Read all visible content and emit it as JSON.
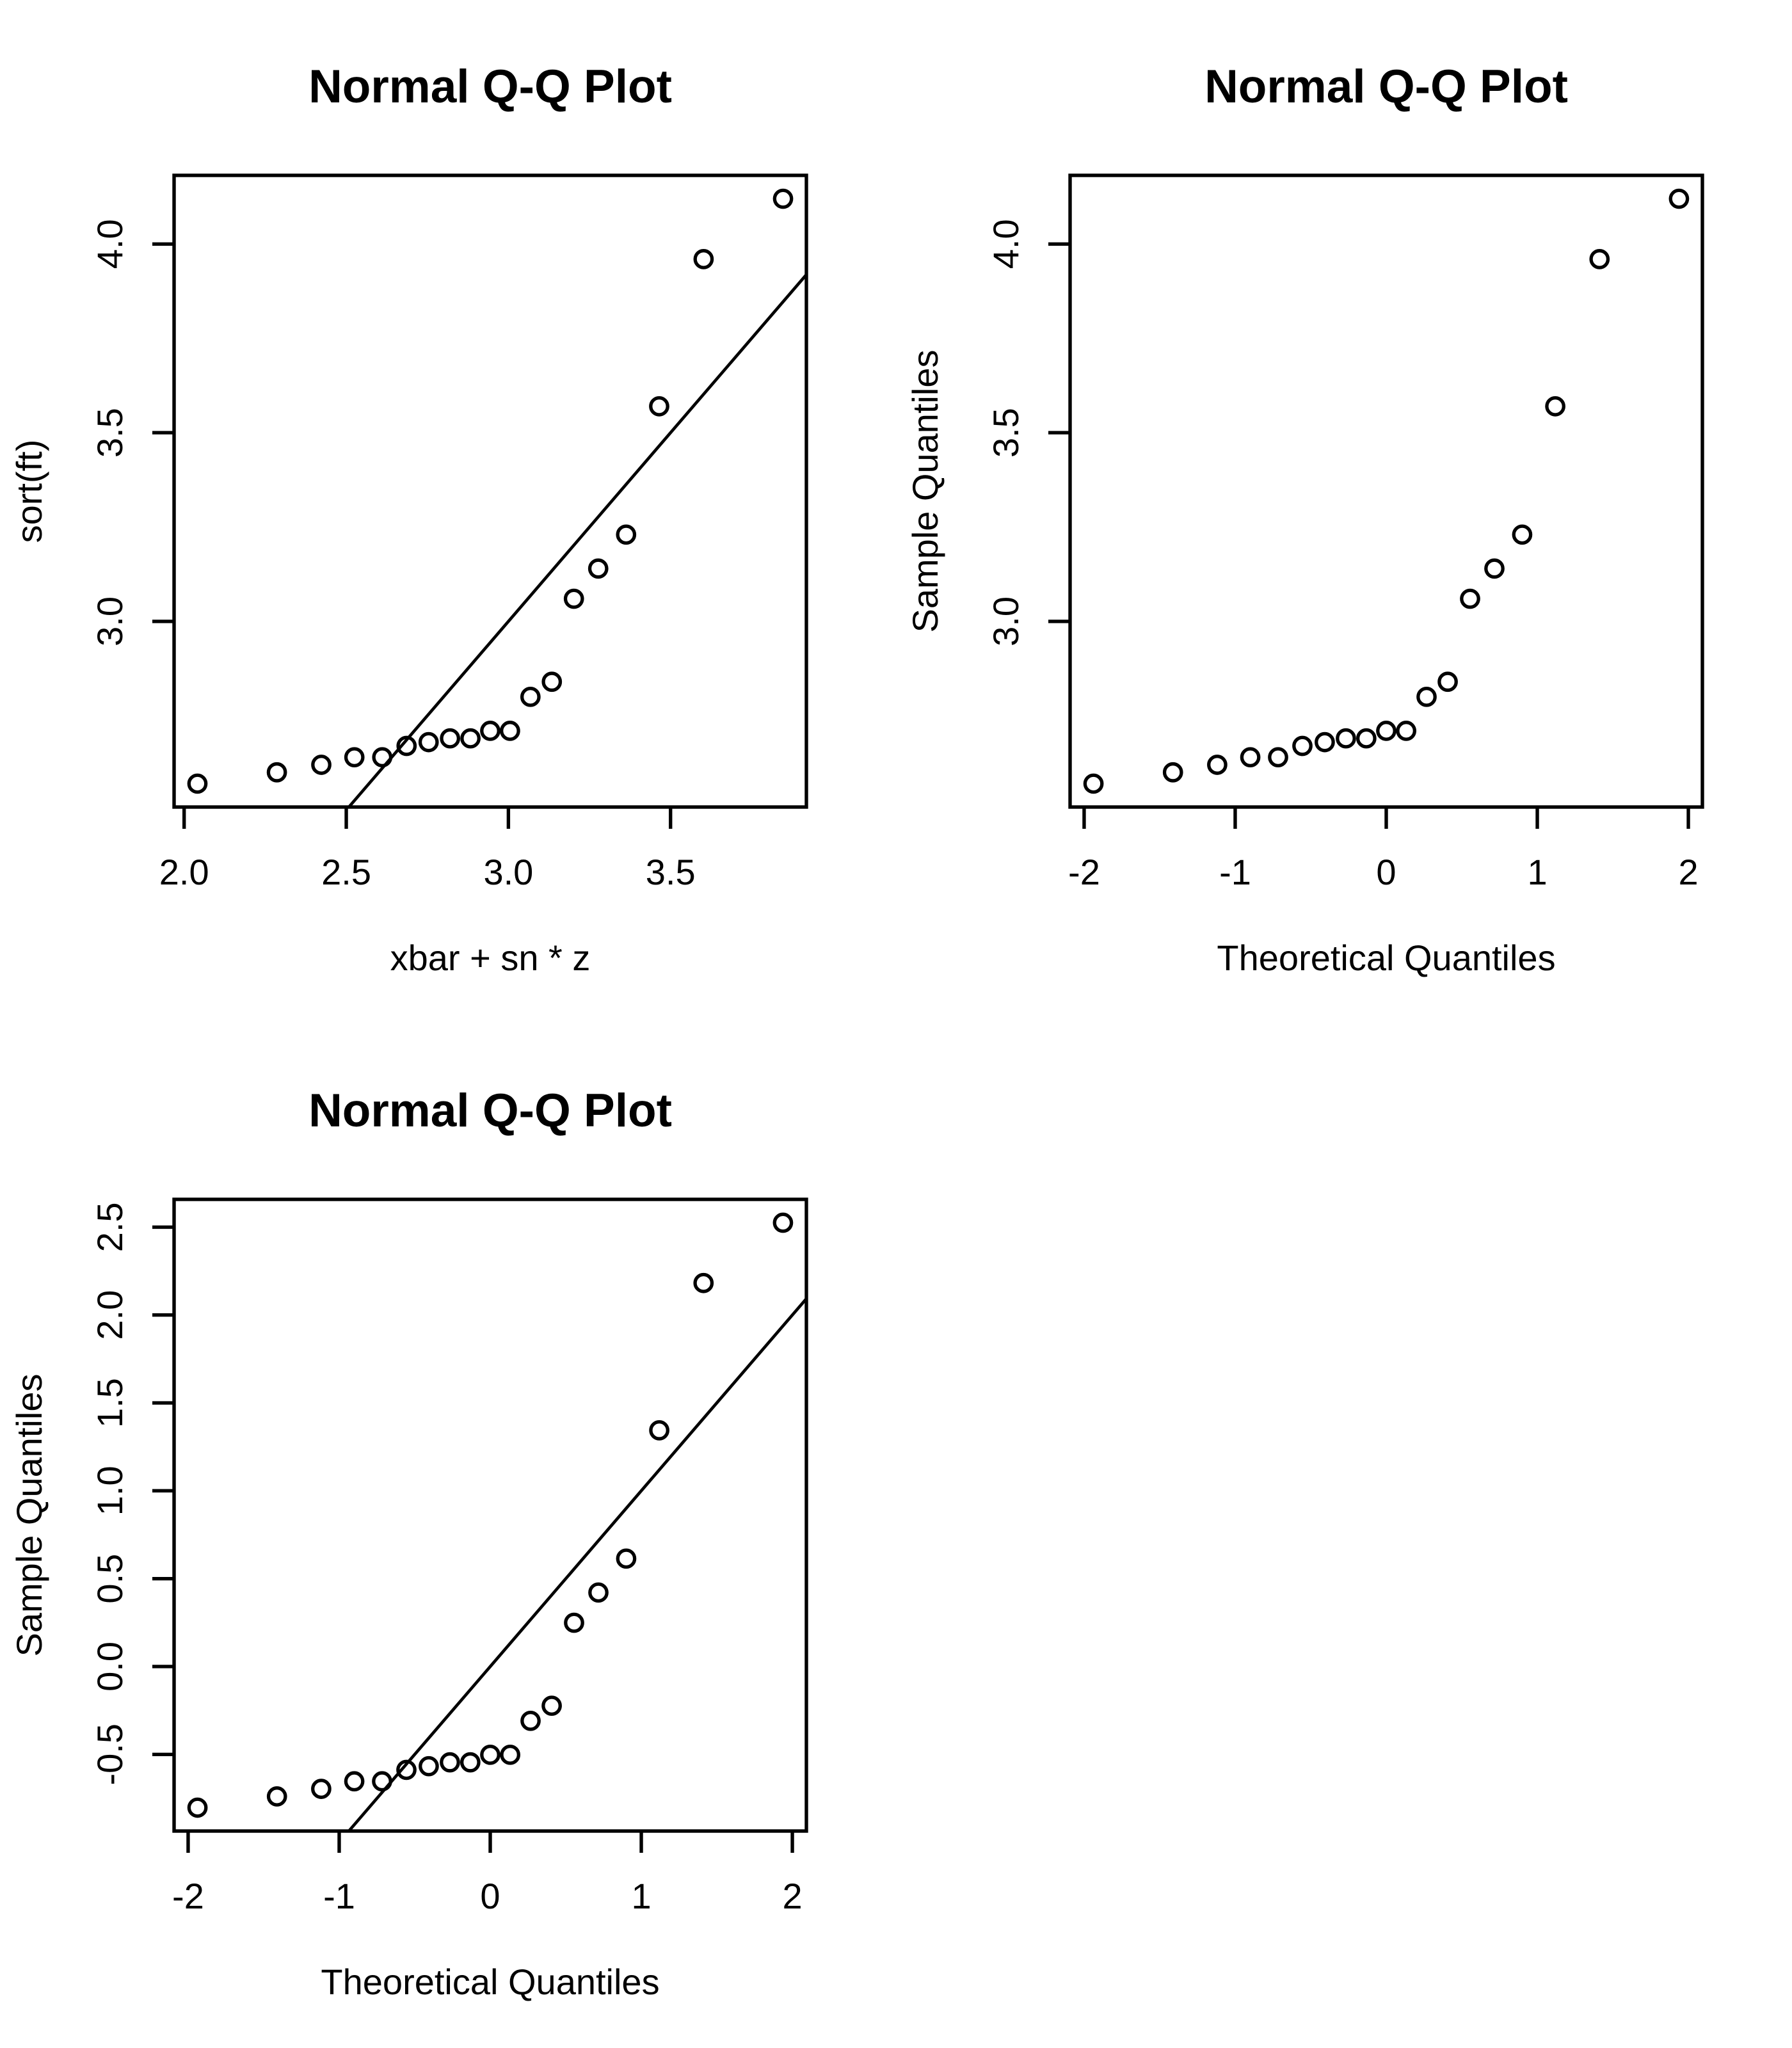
{
  "page": {
    "background": "#ffffff",
    "foreground": "#000000"
  },
  "chart_data": [
    {
      "id": "qq-plot-raw-vs-fitted",
      "type": "scatter",
      "title": "Normal Q-Q Plot",
      "xlabel": "xbar + sn * z",
      "ylabel": "sort(ft)",
      "grid": false,
      "legend": null,
      "point_style": "open-circle",
      "xlim": [
        1.969,
        3.919
      ],
      "ylim": [
        2.508,
        4.182
      ],
      "x_ticks": {
        "values": [
          2.0,
          2.5,
          3.0,
          3.5
        ],
        "labels": [
          "2.0",
          "2.5",
          "3.0",
          "3.5"
        ]
      },
      "y_ticks": {
        "values": [
          3.0,
          3.5,
          4.0
        ],
        "labels": [
          "3.0",
          "3.5",
          "4.0"
        ]
      },
      "points": {
        "x": [
          2.041,
          2.286,
          2.423,
          2.525,
          2.611,
          2.686,
          2.754,
          2.82,
          2.883,
          2.944,
          3.005,
          3.068,
          3.134,
          3.202,
          3.277,
          3.363,
          3.465,
          3.602,
          3.847
        ],
        "y": [
          2.57,
          2.6,
          2.62,
          2.64,
          2.64,
          2.67,
          2.68,
          2.69,
          2.69,
          2.71,
          2.71,
          2.8,
          2.84,
          3.06,
          3.14,
          3.23,
          3.57,
          3.96,
          4.12
        ]
      },
      "ref_line": {
        "desc": "identity line y = x",
        "x1": 2.508,
        "y1": 2.508,
        "x2": 3.919,
        "y2": 3.919
      }
    },
    {
      "id": "qq-plot-qqnorm",
      "type": "scatter",
      "title": "Normal Q-Q Plot",
      "xlabel": "Theoretical Quantiles",
      "ylabel": "Sample Quantiles",
      "grid": false,
      "legend": null,
      "point_style": "open-circle",
      "xlim": [
        -2.093,
        2.093
      ],
      "ylim": [
        2.508,
        4.182
      ],
      "x_ticks": {
        "values": [
          -2,
          -1,
          0,
          1,
          2
        ],
        "labels": [
          "-2",
          "-1",
          "0",
          "1",
          "2"
        ]
      },
      "y_ticks": {
        "values": [
          3.0,
          3.5,
          4.0
        ],
        "labels": [
          "3.0",
          "3.5",
          "4.0"
        ]
      },
      "points": {
        "x": [
          -1.938,
          -1.412,
          -1.119,
          -0.9,
          -0.716,
          -0.555,
          -0.407,
          -0.267,
          -0.132,
          0.0,
          0.132,
          0.267,
          0.407,
          0.555,
          0.716,
          0.9,
          1.119,
          1.412,
          1.938
        ],
        "y": [
          2.57,
          2.6,
          2.62,
          2.64,
          2.64,
          2.67,
          2.68,
          2.69,
          2.69,
          2.71,
          2.71,
          2.8,
          2.84,
          3.06,
          3.14,
          3.23,
          3.57,
          3.96,
          4.12
        ]
      },
      "ref_line": null
    },
    {
      "id": "qq-plot-standardized",
      "type": "scatter",
      "title": "Normal Q-Q Plot",
      "xlabel": "Theoretical Quantiles",
      "ylabel": "Sample Quantiles",
      "grid": false,
      "legend": null,
      "point_style": "open-circle",
      "xlim": [
        -2.093,
        2.093
      ],
      "ylim": [
        -0.936,
        2.658
      ],
      "x_ticks": {
        "values": [
          -2,
          -1,
          0,
          1,
          2
        ],
        "labels": [
          "-2",
          "-1",
          "0",
          "1",
          "2"
        ]
      },
      "y_ticks": {
        "values": [
          -0.5,
          0.0,
          0.5,
          1.0,
          1.5,
          2.0,
          2.5
        ],
        "labels": [
          "-0.5",
          "0.0",
          "0.5",
          "1.0",
          "1.5",
          "2.0",
          "2.5"
        ]
      },
      "points": {
        "x": [
          -1.938,
          -1.412,
          -1.119,
          -0.9,
          -0.716,
          -0.555,
          -0.407,
          -0.267,
          -0.132,
          0.0,
          0.132,
          0.267,
          0.407,
          0.555,
          0.716,
          0.9,
          1.119,
          1.412,
          1.938
        ],
        "y": [
          -0.803,
          -0.739,
          -0.696,
          -0.653,
          -0.653,
          -0.588,
          -0.567,
          -0.545,
          -0.545,
          -0.502,
          -0.502,
          -0.309,
          -0.223,
          0.249,
          0.421,
          0.614,
          1.344,
          2.182,
          2.525
        ]
      },
      "ref_line": {
        "desc": "identity line y = x",
        "x1": -0.936,
        "y1": -0.936,
        "x2": 2.093,
        "y2": 2.093
      }
    }
  ]
}
